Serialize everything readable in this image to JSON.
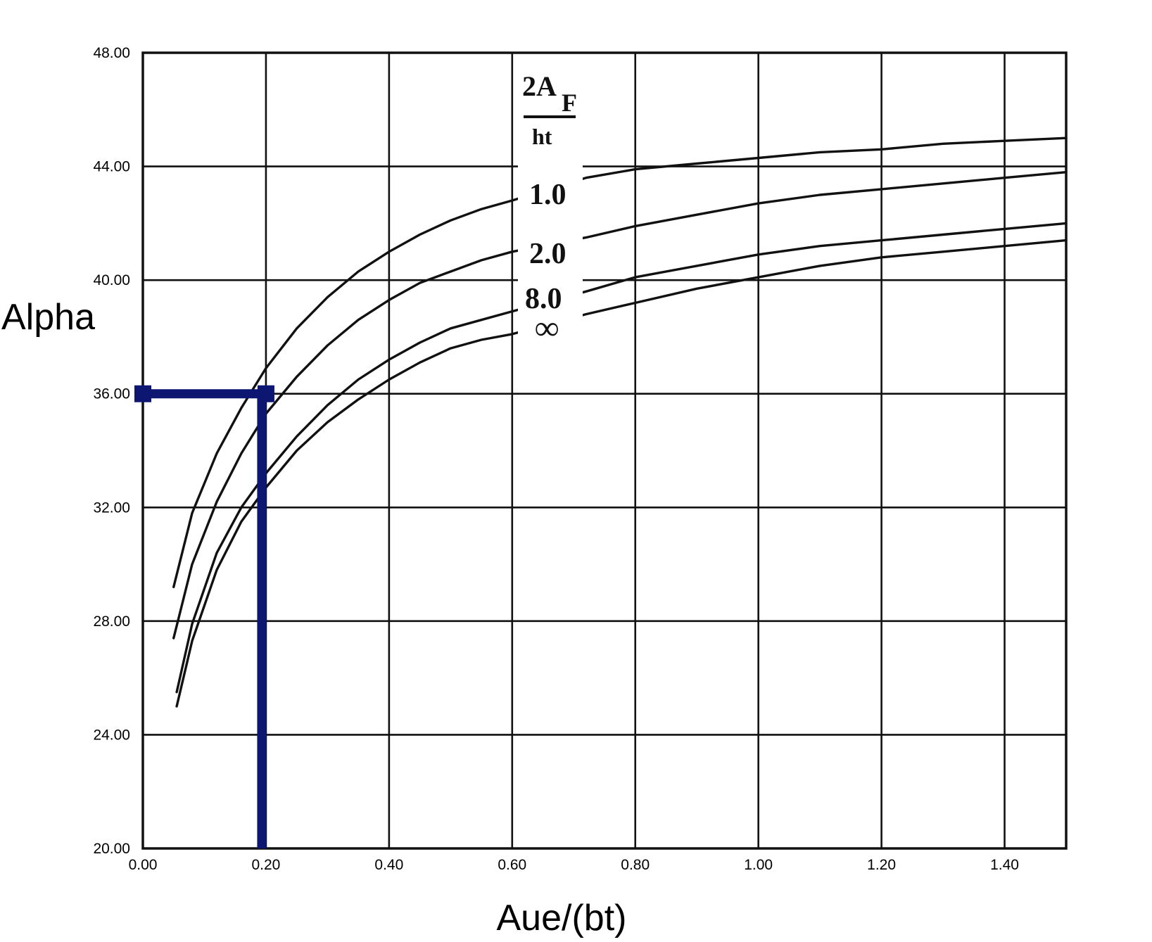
{
  "chart_data": {
    "type": "line",
    "xlabel": "Aue/(bt)",
    "ylabel": "Alpha",
    "xlim": [
      0,
      1.5
    ],
    "ylim": [
      20,
      48
    ],
    "x_ticks": [
      "0.00",
      "0.20",
      "0.40",
      "0.60",
      "0.80",
      "1.00",
      "1.20",
      "1.40"
    ],
    "y_ticks": [
      "20.00",
      "24.00",
      "28.00",
      "32.00",
      "36.00",
      "40.00",
      "44.00",
      "48.00"
    ],
    "grid": true,
    "legend_title": {
      "numerator_main": "2A",
      "numerator_sub": "F",
      "denominator": "ht"
    },
    "series": [
      {
        "name": "1.0",
        "x": [
          0.05,
          0.08,
          0.12,
          0.16,
          0.2,
          0.25,
          0.3,
          0.35,
          0.4,
          0.45,
          0.5,
          0.55,
          0.6,
          0.72,
          0.8,
          0.9,
          1.0,
          1.1,
          1.2,
          1.3,
          1.4,
          1.5
        ],
        "y": [
          29.2,
          31.8,
          33.9,
          35.5,
          36.9,
          38.3,
          39.4,
          40.3,
          41.0,
          41.6,
          42.1,
          42.5,
          42.8,
          43.6,
          43.9,
          44.1,
          44.3,
          44.5,
          44.6,
          44.8,
          44.9,
          45.0
        ]
      },
      {
        "name": "2.0",
        "x": [
          0.05,
          0.08,
          0.12,
          0.16,
          0.2,
          0.25,
          0.3,
          0.35,
          0.4,
          0.45,
          0.5,
          0.55,
          0.6,
          0.72,
          0.8,
          0.9,
          1.0,
          1.1,
          1.2,
          1.3,
          1.4,
          1.5
        ],
        "y": [
          27.4,
          30.0,
          32.2,
          33.9,
          35.3,
          36.6,
          37.7,
          38.6,
          39.3,
          39.9,
          40.3,
          40.7,
          41.0,
          41.5,
          41.9,
          42.3,
          42.7,
          43.0,
          43.2,
          43.4,
          43.6,
          43.8
        ]
      },
      {
        "name": "8.0",
        "x": [
          0.055,
          0.08,
          0.12,
          0.16,
          0.2,
          0.25,
          0.3,
          0.35,
          0.4,
          0.45,
          0.5,
          0.55,
          0.6,
          0.72,
          0.8,
          0.9,
          1.0,
          1.1,
          1.2,
          1.3,
          1.4,
          1.5
        ],
        "y": [
          25.5,
          27.9,
          30.4,
          32.0,
          33.2,
          34.5,
          35.6,
          36.5,
          37.2,
          37.8,
          38.3,
          38.6,
          38.9,
          39.6,
          40.1,
          40.5,
          40.9,
          41.2,
          41.4,
          41.6,
          41.8,
          42.0
        ]
      },
      {
        "name": "∞",
        "x": [
          0.055,
          0.08,
          0.12,
          0.16,
          0.2,
          0.25,
          0.3,
          0.35,
          0.4,
          0.45,
          0.5,
          0.55,
          0.6,
          0.72,
          0.8,
          0.9,
          1.0,
          1.1,
          1.2,
          1.3,
          1.4,
          1.5
        ],
        "y": [
          25.0,
          27.3,
          29.8,
          31.5,
          32.7,
          34.0,
          35.0,
          35.8,
          36.5,
          37.1,
          37.6,
          37.9,
          38.1,
          38.8,
          39.2,
          39.7,
          40.1,
          40.5,
          40.8,
          41.0,
          41.2,
          41.4
        ]
      }
    ],
    "annotation": {
      "x": 0.2,
      "y": 36.0,
      "color": "#0d1670"
    }
  }
}
